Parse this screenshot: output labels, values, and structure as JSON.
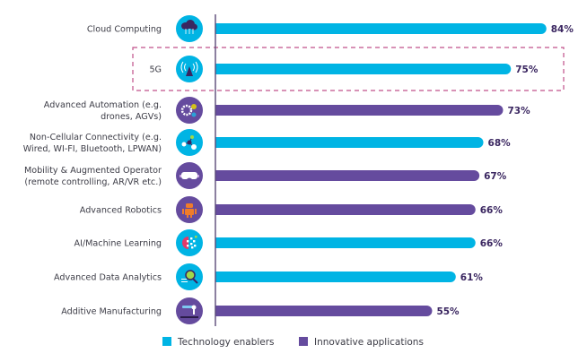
{
  "chart_data": {
    "type": "bar",
    "orientation": "horizontal",
    "title": "",
    "xlabel": "",
    "ylabel": "",
    "xlim": [
      0,
      100
    ],
    "grid": false,
    "value_suffix": "%",
    "legend_position": "bottom",
    "categories": [
      {
        "label_lines": [
          "Cloud Computing"
        ],
        "value": 84,
        "group": "Technology enablers",
        "icon": "cloud-computing-icon",
        "highlighted": false
      },
      {
        "label_lines": [
          "5G"
        ],
        "value": 75,
        "group": "Technology enablers",
        "icon": "antenna-5g-icon",
        "highlighted": true
      },
      {
        "label_lines": [
          "Advanced Automation (e.g.",
          "drones, AGVs)"
        ],
        "value": 73,
        "group": "Innovative applications",
        "icon": "gears-icon",
        "highlighted": false
      },
      {
        "label_lines": [
          "Non-Cellular Connectivity (e.g.",
          "Wired, WI-FI, Bluetooth, LPWAN)"
        ],
        "value": 68,
        "group": "Technology enablers",
        "icon": "network-nodes-icon",
        "highlighted": false
      },
      {
        "label_lines": [
          "Mobility & Augmented Operator",
          "(remote controlling, AR/VR etc.)"
        ],
        "value": 67,
        "group": "Innovative applications",
        "icon": "vr-headset-icon",
        "highlighted": false
      },
      {
        "label_lines": [
          "Advanced Robotics"
        ],
        "value": 66,
        "group": "Innovative applications",
        "icon": "robot-icon",
        "highlighted": false
      },
      {
        "label_lines": [
          "AI/Machine Learning"
        ],
        "value": 66,
        "group": "Technology enablers",
        "icon": "ai-brain-icon",
        "highlighted": false
      },
      {
        "label_lines": [
          "Advanced Data Analytics"
        ],
        "value": 61,
        "group": "Technology enablers",
        "icon": "magnifier-analytics-icon",
        "highlighted": false
      },
      {
        "label_lines": [
          "Additive Manufacturing"
        ],
        "value": 55,
        "group": "Innovative applications",
        "icon": "3d-printer-arm-icon",
        "highlighted": false
      }
    ],
    "series": [
      {
        "name": "Technology enablers",
        "color": "#00b4e4"
      },
      {
        "name": "Innovative applications",
        "color": "#654b9e"
      }
    ],
    "legend": [
      {
        "label": "Technology enablers",
        "color": "#00b4e4"
      },
      {
        "label": "Innovative applications",
        "color": "#654b9e"
      }
    ]
  },
  "colors": {
    "axis": "#5a4a78",
    "highlight_box": "#c0508a",
    "value_text": "#3a2660",
    "label_text": "#3c3c46"
  }
}
